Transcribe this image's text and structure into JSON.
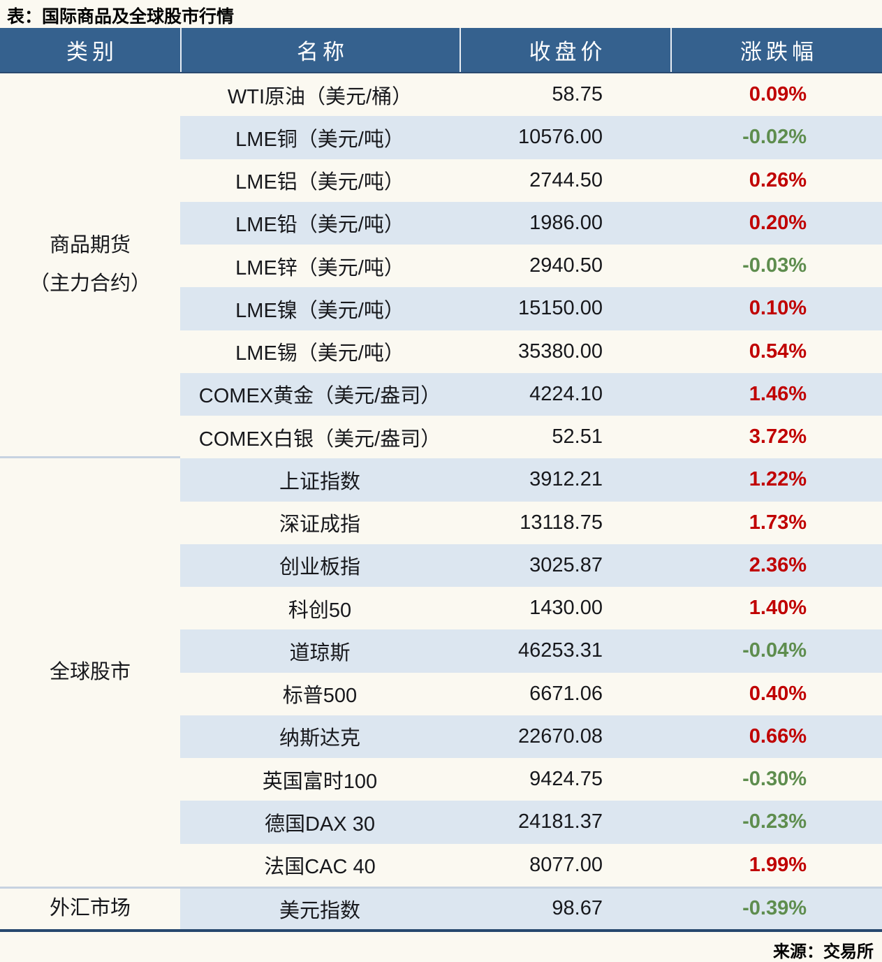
{
  "title": "表：国际商品及全球股市行情",
  "source": "来源：交易所",
  "colors": {
    "up": "#C00000",
    "down": "#5E8D4E",
    "header_bg": "#35618E",
    "row_alt": "#DCE6F0",
    "separator": "#C7D3E1",
    "bottom_border": "#27486E",
    "page_bg": "#FBF9F1"
  },
  "table": {
    "headers": [
      "类别",
      "名称",
      "收盘价",
      "涨跌幅"
    ],
    "sections": [
      {
        "category": [
          "商品期货",
          "（主力合约）"
        ],
        "rows": [
          {
            "name": "WTI原油（美元/桶）",
            "close": "58.75",
            "change": "0.09%"
          },
          {
            "name": "LME铜（美元/吨）",
            "close": "10576.00",
            "change": "-0.02%"
          },
          {
            "name": "LME铝（美元/吨）",
            "close": "2744.50",
            "change": "0.26%"
          },
          {
            "name": "LME铅（美元/吨）",
            "close": "1986.00",
            "change": "0.20%"
          },
          {
            "name": "LME锌（美元/吨）",
            "close": "2940.50",
            "change": "-0.03%"
          },
          {
            "name": "LME镍（美元/吨）",
            "close": "15150.00",
            "change": "0.10%"
          },
          {
            "name": "LME锡（美元/吨）",
            "close": "35380.00",
            "change": "0.54%"
          },
          {
            "name": "COMEX黄金（美元/盎司）",
            "close": "4224.10",
            "change": "1.46%"
          },
          {
            "name": "COMEX白银（美元/盎司）",
            "close": "52.51",
            "change": "3.72%"
          }
        ]
      },
      {
        "category": [
          "全球股市"
        ],
        "rows": [
          {
            "name": "上证指数",
            "close": "3912.21",
            "change": "1.22%"
          },
          {
            "name": "深证成指",
            "close": "13118.75",
            "change": "1.73%"
          },
          {
            "name": "创业板指",
            "close": "3025.87",
            "change": "2.36%"
          },
          {
            "name": "科创50",
            "close": "1430.00",
            "change": "1.40%"
          },
          {
            "name": "道琼斯",
            "close": "46253.31",
            "change": "-0.04%"
          },
          {
            "name": "标普500",
            "close": "6671.06",
            "change": "0.40%"
          },
          {
            "name": "纳斯达克",
            "close": "22670.08",
            "change": "0.66%"
          },
          {
            "name": "英国富时100",
            "close": "9424.75",
            "change": "-0.30%"
          },
          {
            "name": "德国DAX 30",
            "close": "24181.37",
            "change": "-0.23%"
          },
          {
            "name": "法国CAC 40",
            "close": "8077.00",
            "change": "1.99%"
          }
        ]
      },
      {
        "category": [
          "外汇市场"
        ],
        "rows": [
          {
            "name": "美元指数",
            "close": "98.67",
            "change": "-0.39%"
          }
        ]
      }
    ]
  }
}
